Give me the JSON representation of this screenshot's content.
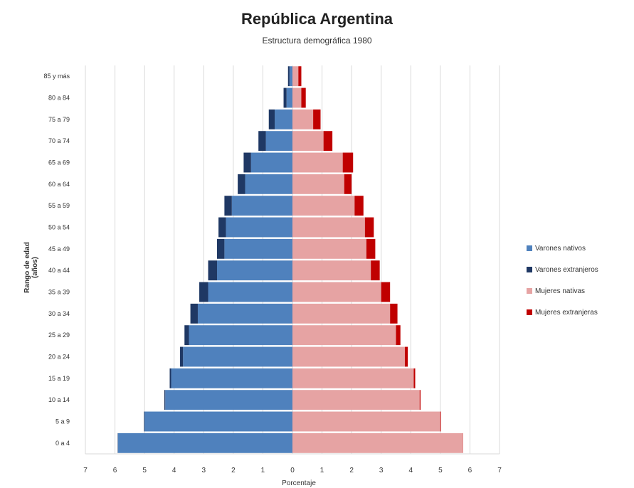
{
  "chart_data": {
    "type": "bar",
    "orientation": "horizontal",
    "title": "República Argentina",
    "subtitle": "Estructura demográfica 1980",
    "ylabel": "Rango de edad (años)",
    "xlabel": "Porcentaje",
    "categories": [
      "0 a 4",
      "5 a 9",
      "10 a 14",
      "15 a 19",
      "20 a 24",
      "25 a 29",
      "30 a 34",
      "35 a 39",
      "40 a 44",
      "45 a 49",
      "50 a 54",
      "55 a 59",
      "60 a 64",
      "65 a 69",
      "70 a 74",
      "75 a 79",
      "80 a 84",
      "85 y más"
    ],
    "xlim": [
      -7,
      7
    ],
    "xticks": [
      -7,
      -6,
      -5,
      -4,
      -3,
      -2,
      -1,
      0,
      1,
      2,
      3,
      4,
      5,
      6,
      7
    ],
    "xtick_labels": [
      "7",
      "6",
      "5",
      "4",
      "3",
      "2",
      "1",
      "0",
      "1",
      "2",
      "3",
      "4",
      "5",
      "6",
      "7"
    ],
    "grid": true,
    "legend_position": "right",
    "series": [
      {
        "name": "Varones nativos",
        "side": "left",
        "color": "#4f81bd",
        "values": [
          5.9,
          5.0,
          4.3,
          4.1,
          3.7,
          3.5,
          3.2,
          2.85,
          2.55,
          2.3,
          2.25,
          2.05,
          1.6,
          1.4,
          0.9,
          0.6,
          0.2,
          0.1
        ]
      },
      {
        "name": "Varones extranjeros",
        "side": "left",
        "color": "#1f3864",
        "values": [
          0.01,
          0.02,
          0.03,
          0.05,
          0.1,
          0.15,
          0.25,
          0.3,
          0.3,
          0.25,
          0.25,
          0.25,
          0.25,
          0.25,
          0.25,
          0.2,
          0.1,
          0.05
        ]
      },
      {
        "name": "Mujeres nativas",
        "side": "right",
        "color": "#e6a3a3",
        "values": [
          5.75,
          5.0,
          4.3,
          4.1,
          3.8,
          3.5,
          3.3,
          3.0,
          2.65,
          2.5,
          2.45,
          2.1,
          1.75,
          1.7,
          1.05,
          0.7,
          0.3,
          0.2
        ]
      },
      {
        "name": "Mujeres extranjeras",
        "side": "right",
        "color": "#c00000",
        "values": [
          0.01,
          0.02,
          0.03,
          0.05,
          0.1,
          0.15,
          0.25,
          0.3,
          0.3,
          0.3,
          0.3,
          0.3,
          0.25,
          0.35,
          0.3,
          0.25,
          0.15,
          0.1
        ]
      }
    ]
  }
}
